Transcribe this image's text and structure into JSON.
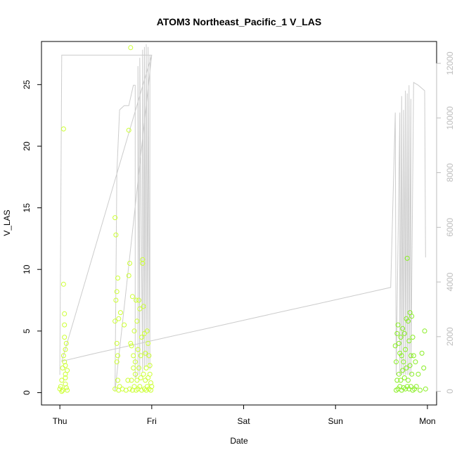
{
  "chart_data": {
    "type": "scatter",
    "title": "ATOM3 Northeast_Pacific_1 V_LAS",
    "xlabel": "Date",
    "ylabel": "V_LAS",
    "x_categories": [
      "Thu",
      "Fri",
      "Sat",
      "Sun",
      "Mon"
    ],
    "xlim": [
      -0.2,
      4.1
    ],
    "ylim": [
      -1,
      28.5
    ],
    "yticks": [
      0,
      5,
      10,
      15,
      20,
      25
    ],
    "y2lim": [
      -500,
      12800
    ],
    "y2ticks": [
      0,
      2000,
      4000,
      6000,
      8000,
      10000,
      12000
    ],
    "colors": {
      "scatter_early": "#ccff33",
      "scatter_late": "#88ee22",
      "line": "#cccccc",
      "right_axis": "#bdbdbd"
    },
    "line_series": {
      "x": [
        0.0,
        0.02,
        0.02,
        0.05,
        1.0,
        0.6,
        0.62,
        0.65,
        0.7,
        0.75,
        0.8,
        0.82,
        0.82,
        0.85,
        0.85,
        0.87,
        0.87,
        0.9,
        0.9,
        0.92,
        0.92,
        0.94,
        0.94,
        0.96,
        0.96,
        0.98,
        0.98,
        1.0,
        0.02,
        0.4,
        0.8,
        1.2,
        1.6,
        2.0,
        2.4,
        2.8,
        3.2,
        3.6,
        3.65,
        3.66,
        3.7,
        3.7,
        3.72,
        3.72,
        3.74,
        3.74,
        3.76,
        3.76,
        3.78,
        3.78,
        3.8,
        3.8,
        3.82,
        3.82,
        3.85,
        3.85,
        3.9,
        3.97,
        3.98
      ],
      "y": [
        600,
        12300,
        12300,
        12300,
        12300,
        0,
        8000,
        10300,
        10450,
        10450,
        11200,
        11200,
        500,
        600,
        11900,
        600,
        12200,
        700,
        12500,
        800,
        12600,
        900,
        12700,
        1000,
        12600,
        800,
        12300,
        12300,
        1100,
        1400,
        1700,
        2000,
        2300,
        2600,
        2900,
        3200,
        3500,
        3800,
        10200,
        600,
        10200,
        600,
        10800,
        600,
        10300,
        600,
        11000,
        600,
        10900,
        600,
        11200,
        600,
        10700,
        600,
        11300,
        11300,
        11200,
        11000,
        4900
      ]
    },
    "scatter_series": [
      {
        "name": "",
        "x": [
          0.0,
          0.01,
          0.02,
          0.02,
          0.03,
          0.03,
          0.04,
          0.04,
          0.04,
          0.05,
          0.05,
          0.05,
          0.05,
          0.06,
          0.06,
          0.06,
          0.06,
          0.06,
          0.07,
          0.07,
          0.08,
          0.08,
          0.6,
          0.6,
          0.6,
          0.61,
          0.61,
          0.62,
          0.62,
          0.62,
          0.63,
          0.63,
          0.63,
          0.64,
          0.64,
          0.65,
          0.66,
          0.68,
          0.7,
          0.72,
          0.74,
          0.75,
          0.75,
          0.76,
          0.76,
          0.77,
          0.77,
          0.78,
          0.78,
          0.79,
          0.79,
          0.8,
          0.8,
          0.81,
          0.81,
          0.82,
          0.82,
          0.83,
          0.83,
          0.84,
          0.84,
          0.85,
          0.85,
          0.86,
          0.86,
          0.87,
          0.87,
          0.88,
          0.88,
          0.89,
          0.89,
          0.9,
          0.9,
          0.91,
          0.91,
          0.92,
          0.92,
          0.93,
          0.93,
          0.94,
          0.94,
          0.95,
          0.95,
          0.96,
          0.96,
          0.97,
          0.97,
          0.98,
          0.98,
          0.99,
          0.99,
          1.0
        ],
        "y": [
          0.3,
          0.5,
          0.1,
          1.0,
          2.0,
          0.2,
          3.0,
          8.8,
          21.4,
          4.5,
          6.4,
          5.5,
          2.5,
          3.5,
          1.5,
          0.7,
          2.2,
          1.2,
          4.0,
          0.4,
          0.2,
          1.8,
          0.3,
          5.8,
          14.2,
          7.5,
          12.8,
          8.2,
          4.0,
          2.5,
          9.3,
          3.0,
          1.0,
          6.0,
          0.2,
          0.5,
          6.5,
          0.3,
          5.5,
          0.2,
          1.0,
          21.3,
          9.5,
          10.5,
          0.3,
          28.0,
          4.0,
          3.8,
          1.0,
          7.8,
          0.2,
          3.0,
          2.0,
          5.0,
          0.5,
          2.5,
          1.5,
          7.5,
          0.2,
          5.8,
          1.0,
          3.5,
          0.3,
          7.5,
          2.0,
          6.8,
          0.5,
          3.0,
          1.2,
          4.5,
          0.2,
          10.5,
          10.8,
          7.0,
          1.5,
          4.8,
          0.3,
          3.2,
          1.0,
          2.0,
          0.2,
          5.0,
          0.5,
          4.0,
          1.2,
          3.0,
          0.3,
          2.2,
          1.5,
          0.8,
          0.2,
          0.5
        ]
      },
      {
        "name": "",
        "x": [
          3.65,
          3.66,
          3.66,
          3.67,
          3.67,
          3.68,
          3.68,
          3.69,
          3.69,
          3.7,
          3.7,
          3.71,
          3.71,
          3.72,
          3.72,
          3.73,
          3.73,
          3.74,
          3.74,
          3.75,
          3.75,
          3.76,
          3.76,
          3.77,
          3.77,
          3.78,
          3.78,
          3.79,
          3.79,
          3.8,
          3.8,
          3.81,
          3.81,
          3.82,
          3.82,
          3.83,
          3.83,
          3.84,
          3.84,
          3.85,
          3.86,
          3.87,
          3.88,
          3.9,
          3.92,
          3.94,
          3.96,
          3.97,
          3.98
        ],
        "y": [
          3.8,
          0.2,
          2.5,
          4.8,
          1.0,
          5.5,
          0.3,
          4.0,
          1.5,
          3.2,
          0.5,
          4.5,
          1.0,
          3.0,
          0.2,
          5.2,
          1.8,
          2.5,
          0.4,
          4.8,
          1.2,
          3.5,
          0.3,
          6.0,
          2.0,
          10.9,
          0.5,
          5.8,
          1.0,
          4.2,
          0.3,
          6.5,
          2.2,
          3.0,
          0.5,
          6.2,
          1.5,
          4.5,
          0.2,
          3.0,
          0.3,
          2.5,
          0.5,
          1.5,
          0.2,
          3.2,
          2.0,
          5.0,
          0.3
        ]
      }
    ]
  }
}
